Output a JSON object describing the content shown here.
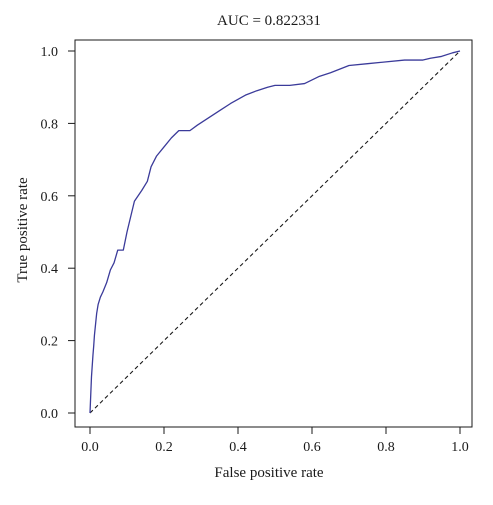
{
  "chart_data": {
    "type": "line",
    "title": "AUC = 0.822331",
    "xlabel": "False positive rate",
    "ylabel": "True positive rate",
    "xlim": [
      0,
      1
    ],
    "ylim": [
      0,
      1
    ],
    "xticks": [
      "0.0",
      "0.2",
      "0.4",
      "0.6",
      "0.8",
      "1.0"
    ],
    "yticks": [
      "0.0",
      "0.2",
      "0.4",
      "0.6",
      "0.8",
      "1.0"
    ],
    "grid": false,
    "colors": {
      "roc": "#3b3b9a",
      "diagonal": "#1a1a1a",
      "frame": "#1a1a1a"
    },
    "series": [
      {
        "type": "line",
        "x": [
          0.0,
          0.002,
          0.004,
          0.006,
          0.008,
          0.01,
          0.012,
          0.015,
          0.018,
          0.022,
          0.028,
          0.035,
          0.045,
          0.055,
          0.065,
          0.075,
          0.09,
          0.1,
          0.12,
          0.14,
          0.155,
          0.165,
          0.18,
          0.2,
          0.22,
          0.24,
          0.25,
          0.27,
          0.29,
          0.32,
          0.35,
          0.38,
          0.42,
          0.45,
          0.48,
          0.5,
          0.54,
          0.58,
          0.6,
          0.62,
          0.65,
          0.7,
          0.75,
          0.8,
          0.85,
          0.9,
          0.92,
          0.95,
          0.98,
          1.0
        ],
        "y": [
          0.0,
          0.05,
          0.1,
          0.13,
          0.16,
          0.185,
          0.215,
          0.245,
          0.275,
          0.3,
          0.32,
          0.335,
          0.36,
          0.395,
          0.415,
          0.45,
          0.45,
          0.5,
          0.585,
          0.615,
          0.64,
          0.68,
          0.71,
          0.735,
          0.76,
          0.78,
          0.78,
          0.78,
          0.795,
          0.815,
          0.835,
          0.855,
          0.878,
          0.89,
          0.9,
          0.905,
          0.905,
          0.91,
          0.92,
          0.93,
          0.94,
          0.96,
          0.965,
          0.97,
          0.975,
          0.975,
          0.98,
          0.985,
          0.995,
          1.0
        ]
      },
      {
        "type": "diagonal",
        "x": [
          0,
          1
        ],
        "y": [
          0,
          1
        ]
      }
    ]
  }
}
